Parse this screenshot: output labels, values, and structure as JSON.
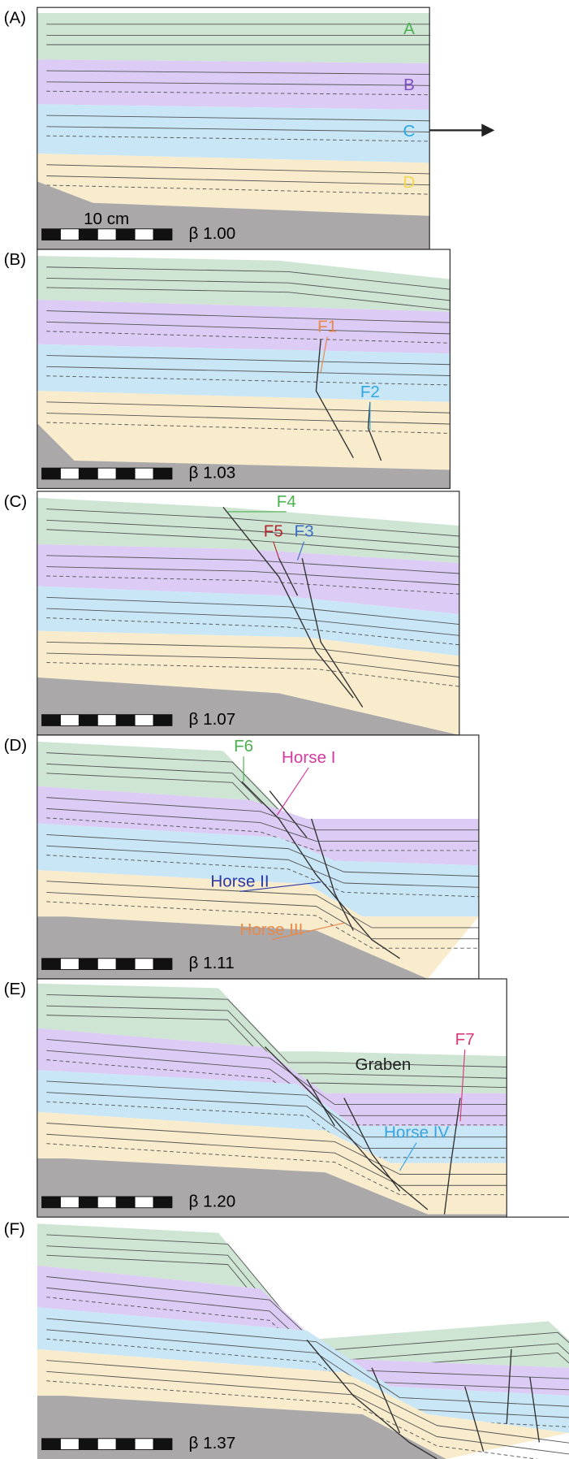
{
  "panels": [
    {
      "label": "(A)",
      "beta": "β 1.00",
      "scale": "10 cm",
      "annotations": [
        {
          "text": "A",
          "color": "#4caf50"
        },
        {
          "text": "B",
          "color": "#7b4fc4"
        },
        {
          "text": "C",
          "color": "#2fa8e0"
        },
        {
          "text": "D",
          "color": "#f2d552"
        }
      ]
    },
    {
      "label": "(B)",
      "beta": "β 1.03",
      "annotations": [
        {
          "text": "F1",
          "color": "#e8894a"
        },
        {
          "text": "F2",
          "color": "#2fa8e0"
        }
      ]
    },
    {
      "label": "(C)",
      "beta": "β 1.07",
      "annotations": [
        {
          "text": "F4",
          "color": "#4caf50"
        },
        {
          "text": "F5",
          "color": "#b3262e"
        },
        {
          "text": "F3",
          "color": "#3f6cc4"
        }
      ]
    },
    {
      "label": "(D)",
      "beta": "β 1.11",
      "annotations": [
        {
          "text": "F6",
          "color": "#4caf50"
        },
        {
          "text": "Horse I",
          "color": "#d63aa0"
        },
        {
          "text": "Horse II",
          "color": "#2b3aa8"
        },
        {
          "text": "Horse III",
          "color": "#e8894a"
        }
      ]
    },
    {
      "label": "(E)",
      "beta": "β 1.20",
      "annotations": [
        {
          "text": "Graben",
          "color": "#222222"
        },
        {
          "text": "F7",
          "color": "#d63a7a"
        },
        {
          "text": "Horse IV",
          "color": "#3aa4e0"
        }
      ]
    },
    {
      "label": "(F)",
      "beta": "β 1.37",
      "annotations": []
    }
  ]
}
